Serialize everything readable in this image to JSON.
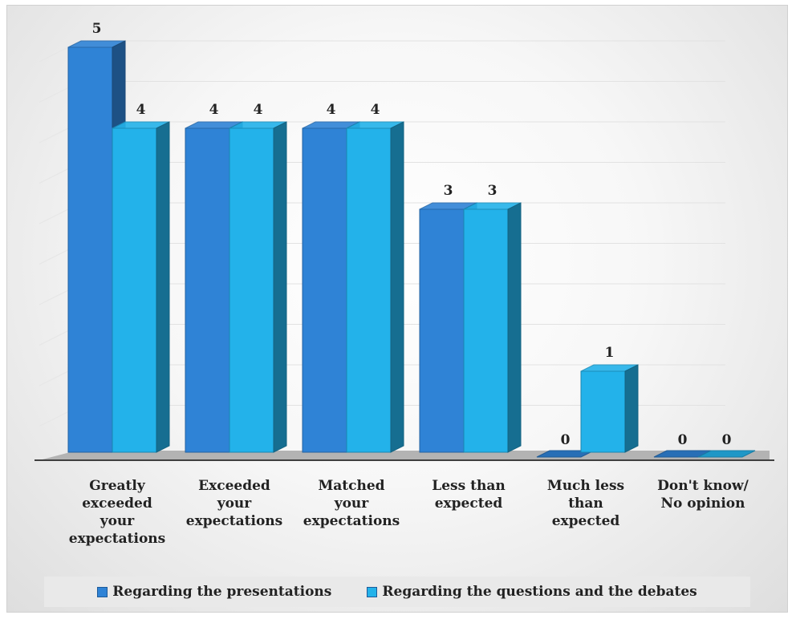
{
  "chart_data": {
    "type": "bar",
    "categories": [
      "Greatly exceeded your expectations",
      "Exceeded your expectations",
      "Matched your expectations",
      "Less than expected",
      "Much less than expected",
      "Don't know/ No opinion"
    ],
    "category_lines": [
      [
        "Greatly",
        "exceeded",
        "your",
        "expectations"
      ],
      [
        "Exceeded",
        "your",
        "expectations"
      ],
      [
        "Matched",
        "your",
        "expectations"
      ],
      [
        "Less than",
        "expected"
      ],
      [
        "Much less",
        "than",
        "expected"
      ],
      [
        "Don't know/",
        "No opinion"
      ]
    ],
    "series": [
      {
        "name": "Regarding the presentations",
        "values": [
          5,
          4,
          4,
          3,
          0,
          0
        ],
        "color": "#2f83d6"
      },
      {
        "name": "Regarding the questions and the debates",
        "values": [
          4,
          4,
          4,
          3,
          1,
          0
        ],
        "color": "#23b2ea"
      }
    ],
    "data_labels": true,
    "ylim": [
      0,
      5
    ],
    "grid": true,
    "legend_position": "bottom",
    "style": "3d-column"
  }
}
